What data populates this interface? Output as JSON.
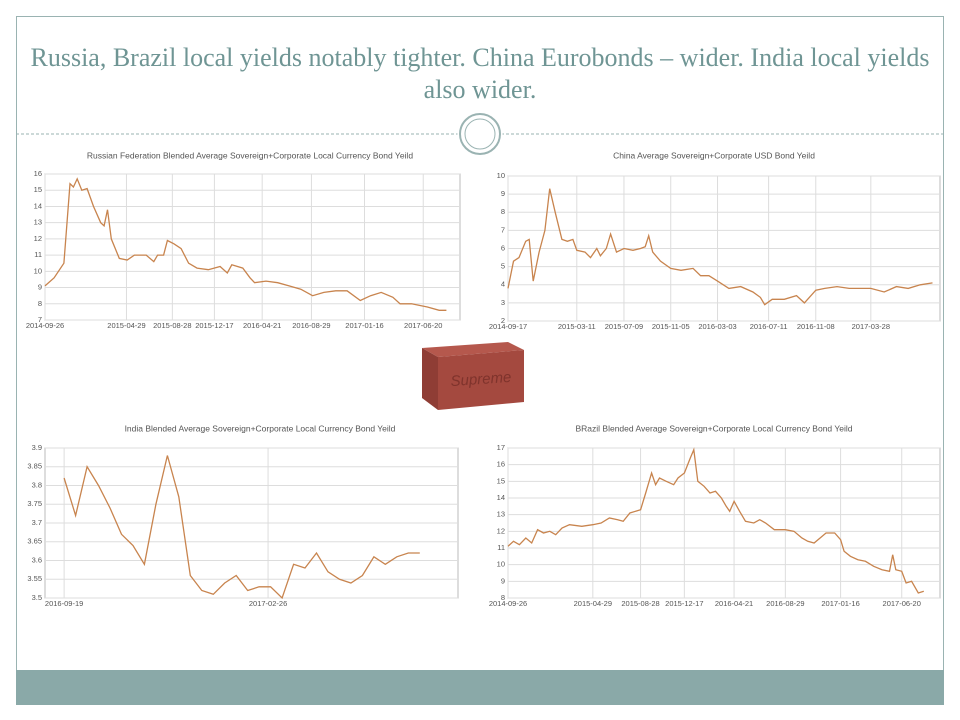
{
  "title": "Russia, Brazil local yields notably tighter. China Eurobonds – wider. India local yields also wider.",
  "brick_label": "Supreme",
  "chart_data": [
    {
      "type": "line",
      "title": "Russian Federation Blended Average Sovereign+Corporate   Local Currency Bond Yeild",
      "color": "#c8844e",
      "grid": true,
      "x": [
        "2014-09-26",
        "2014-10-20",
        "2014-11-15",
        "2014-12-01",
        "2014-12-10",
        "2014-12-20",
        "2015-01-01",
        "2015-01-15",
        "2015-02-01",
        "2015-02-20",
        "2015-03-01",
        "2015-03-10",
        "2015-03-20",
        "2015-04-10",
        "2015-05-01",
        "2015-05-20",
        "2015-06-20",
        "2015-07-10",
        "2015-07-20",
        "2015-08-05",
        "2015-08-15",
        "2015-09-01",
        "2015-09-20",
        "2015-10-10",
        "2015-11-01",
        "2015-12-01",
        "2016-01-01",
        "2016-01-20",
        "2016-02-01",
        "2016-03-01",
        "2016-03-20",
        "2016-04-01",
        "2016-05-01",
        "2016-06-01",
        "2016-07-01",
        "2016-08-01",
        "2016-09-01",
        "2016-10-01",
        "2016-11-01",
        "2016-12-01",
        "2017-01-05",
        "2017-02-01",
        "2017-03-01",
        "2017-04-01",
        "2017-04-20",
        "2017-05-20",
        "2017-07-01",
        "2017-08-01",
        "2017-08-20"
      ],
      "values": [
        9.1,
        9.6,
        10.5,
        15.4,
        15.2,
        15.7,
        15.0,
        15.1,
        14.0,
        13.0,
        12.8,
        13.8,
        12.0,
        10.8,
        10.7,
        11.0,
        11.0,
        10.6,
        11.0,
        11.0,
        11.9,
        11.7,
        11.4,
        10.5,
        10.2,
        10.1,
        10.3,
        9.9,
        10.4,
        10.2,
        9.6,
        9.3,
        9.4,
        9.3,
        9.1,
        8.9,
        8.5,
        8.7,
        8.8,
        8.8,
        8.2,
        8.5,
        8.7,
        8.4,
        8.0,
        8.0,
        7.8,
        7.6,
        7.6
      ],
      "xlim": [
        "2014-09-26",
        "2017-09-25"
      ],
      "xticks": [
        "2014-09-26",
        "2015-04-29",
        "2015-08-28",
        "2015-12-17",
        "2016-04-21",
        "2016-08-29",
        "2017-01-16",
        "2017-06-20"
      ],
      "ylim": [
        7,
        16
      ],
      "yticks": [
        7,
        8,
        9,
        10,
        11,
        12,
        13,
        14,
        15,
        16
      ]
    },
    {
      "type": "line",
      "title": "China Average Sovereign+Corporate  USD Bond Yeild",
      "color": "#c8844e",
      "grid": true,
      "x": [
        "2014-09-17",
        "2014-10-01",
        "2014-10-15",
        "2014-11-01",
        "2014-11-10",
        "2014-11-20",
        "2014-12-05",
        "2014-12-20",
        "2015-01-01",
        "2015-01-15",
        "2015-02-01",
        "2015-02-15",
        "2015-03-01",
        "2015-03-11",
        "2015-04-01",
        "2015-04-15",
        "2015-05-01",
        "2015-05-10",
        "2015-05-25",
        "2015-06-05",
        "2015-06-20",
        "2015-07-09",
        "2015-08-01",
        "2015-08-20",
        "2015-09-01",
        "2015-09-10",
        "2015-09-20",
        "2015-10-10",
        "2015-11-05",
        "2015-12-01",
        "2016-01-01",
        "2016-01-20",
        "2016-02-10",
        "2016-03-03",
        "2016-04-01",
        "2016-05-01",
        "2016-06-01",
        "2016-06-20",
        "2016-07-01",
        "2016-07-20",
        "2016-08-20",
        "2016-09-20",
        "2016-10-10",
        "2016-11-08",
        "2016-12-01",
        "2017-01-01",
        "2017-02-01",
        "2017-03-28",
        "2017-05-01",
        "2017-06-01",
        "2017-07-01",
        "2017-08-01",
        "2017-09-01"
      ],
      "values": [
        3.8,
        5.3,
        5.5,
        6.4,
        6.5,
        4.2,
        5.8,
        7.0,
        9.3,
        8.0,
        6.5,
        6.4,
        6.5,
        5.9,
        5.8,
        5.5,
        6.0,
        5.6,
        6.0,
        6.8,
        5.8,
        6.0,
        5.9,
        6.0,
        6.1,
        6.7,
        5.8,
        5.3,
        4.9,
        4.8,
        4.9,
        4.5,
        4.5,
        4.2,
        3.8,
        3.9,
        3.6,
        3.3,
        2.9,
        3.2,
        3.2,
        3.4,
        3.0,
        3.7,
        3.8,
        3.9,
        3.8,
        3.8,
        3.6,
        3.9,
        3.8,
        4.0,
        4.1
      ],
      "xlim": [
        "2014-09-17",
        "2017-09-20"
      ],
      "xticks": [
        "2014-09-17",
        "2015-03-11",
        "2015-07-09",
        "2015-11-05",
        "2016-03-03",
        "2016-07-11",
        "2016-11-08",
        "2017-03-28"
      ],
      "ylim": [
        2,
        10
      ],
      "yticks": [
        2,
        3,
        4,
        5,
        6,
        7,
        8,
        9,
        10
      ]
    },
    {
      "type": "line",
      "title": "India Blended Average Sovereign+Corporate   Local Currency Bond Yeild",
      "color": "#c8844e",
      "grid": true,
      "x": [
        "2016-09-19",
        "2016-09-28",
        "2016-10-07",
        "2016-10-16",
        "2016-10-25",
        "2016-11-03",
        "2016-11-12",
        "2016-11-21",
        "2016-11-30",
        "2016-12-09",
        "2016-12-18",
        "2016-12-27",
        "2017-01-05",
        "2017-01-14",
        "2017-01-23",
        "2017-02-01",
        "2017-02-10",
        "2017-02-19",
        "2017-02-28",
        "2017-03-09",
        "2017-03-18",
        "2017-03-27",
        "2017-04-05",
        "2017-04-14",
        "2017-04-23",
        "2017-05-02",
        "2017-05-11",
        "2017-05-20",
        "2017-05-29",
        "2017-06-07",
        "2017-06-16",
        "2017-06-25"
      ],
      "values": [
        3.82,
        3.72,
        3.85,
        3.8,
        3.74,
        3.67,
        3.64,
        3.59,
        3.75,
        3.88,
        3.77,
        3.56,
        3.52,
        3.51,
        3.54,
        3.56,
        3.52,
        3.53,
        3.53,
        3.5,
        3.59,
        3.58,
        3.62,
        3.57,
        3.55,
        3.54,
        3.56,
        3.61,
        3.59,
        3.61,
        3.62,
        3.62
      ],
      "xlim": [
        "2016-09-04",
        "2017-07-25"
      ],
      "xticks": [
        "2016-09-19",
        "2017-02-26"
      ],
      "ylim": [
        3.5,
        3.9
      ],
      "yticks": [
        3.5,
        3.55,
        3.6,
        3.65,
        3.7,
        3.75,
        3.8,
        3.85,
        3.9
      ]
    },
    {
      "type": "line",
      "title": "BRazil Blended Average Sovereign+Corporate   Local Currency Bond Yeild",
      "color": "#c8844e",
      "grid": true,
      "x": [
        "2014-09-26",
        "2014-10-10",
        "2014-10-25",
        "2014-11-10",
        "2014-11-25",
        "2014-12-10",
        "2014-12-25",
        "2015-01-10",
        "2015-01-25",
        "2015-02-10",
        "2015-03-01",
        "2015-04-01",
        "2015-04-29",
        "2015-05-20",
        "2015-06-10",
        "2015-07-01",
        "2015-07-15",
        "2015-08-01",
        "2015-08-28",
        "2015-09-10",
        "2015-09-25",
        "2015-10-05",
        "2015-10-15",
        "2015-11-01",
        "2015-11-20",
        "2015-12-01",
        "2015-12-17",
        "2016-01-01",
        "2016-01-10",
        "2016-01-20",
        "2016-02-05",
        "2016-02-20",
        "2016-03-05",
        "2016-03-20",
        "2016-04-01",
        "2016-04-10",
        "2016-04-21",
        "2016-05-05",
        "2016-05-20",
        "2016-06-10",
        "2016-06-25",
        "2016-07-10",
        "2016-08-01",
        "2016-08-29",
        "2016-09-20",
        "2016-10-10",
        "2016-10-25",
        "2016-11-10",
        "2016-11-25",
        "2016-12-10",
        "2017-01-01",
        "2017-01-16",
        "2017-01-25",
        "2017-02-10",
        "2017-03-01",
        "2017-03-20",
        "2017-04-10",
        "2017-05-01",
        "2017-05-20",
        "2017-05-28",
        "2017-06-05",
        "2017-06-20",
        "2017-07-01",
        "2017-07-15",
        "2017-08-01",
        "2017-08-15"
      ],
      "values": [
        11.1,
        11.4,
        11.2,
        11.6,
        11.3,
        12.1,
        11.9,
        12.0,
        11.8,
        12.2,
        12.4,
        12.3,
        12.4,
        12.5,
        12.8,
        12.7,
        12.6,
        13.1,
        13.3,
        14.3,
        15.5,
        14.8,
        15.2,
        15.0,
        14.8,
        15.2,
        15.5,
        16.4,
        16.9,
        15.0,
        14.7,
        14.3,
        14.4,
        14.0,
        13.5,
        13.2,
        13.8,
        13.2,
        12.6,
        12.5,
        12.7,
        12.5,
        12.1,
        12.1,
        12.0,
        11.6,
        11.4,
        11.3,
        11.6,
        11.9,
        11.9,
        11.5,
        10.8,
        10.5,
        10.3,
        10.2,
        9.9,
        9.7,
        9.6,
        10.6,
        9.7,
        9.6,
        8.9,
        9.0,
        8.3,
        8.4
      ],
      "xlim": [
        "2014-09-26",
        "2017-09-25"
      ],
      "xticks": [
        "2014-09-26",
        "2015-04-29",
        "2015-08-28",
        "2015-12-17",
        "2016-04-21",
        "2016-08-29",
        "2017-01-16",
        "2017-06-20"
      ],
      "ylim": [
        8,
        17
      ],
      "yticks": [
        8,
        9,
        10,
        11,
        12,
        13,
        14,
        15,
        16,
        17
      ]
    }
  ]
}
